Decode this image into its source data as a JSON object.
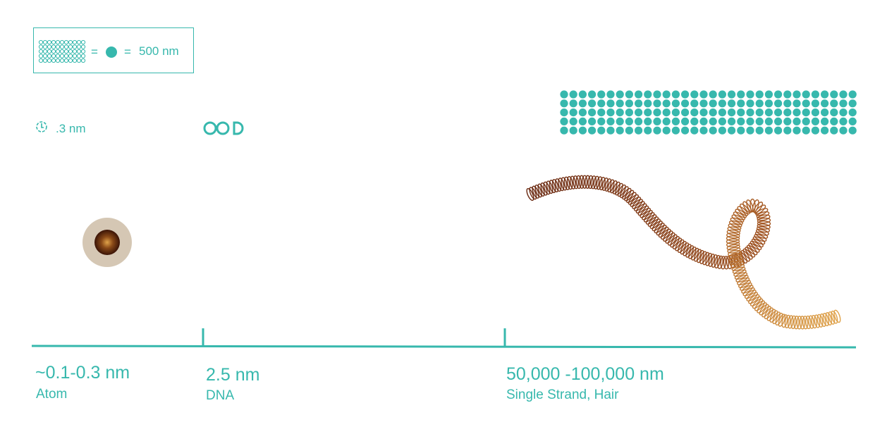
{
  "colors": {
    "accent": "#37b8ad",
    "atom_halo": "#d5c7b4",
    "atom_core": "#4a1e0a",
    "hair_dark": "#6b2a12",
    "hair_light": "#e0a34a"
  },
  "legend": {
    "equals_1": "=",
    "equals_2": "=",
    "value": "500 nm",
    "grid_icon": "dot-grid-icon",
    "dot_icon": "filled-dot-icon"
  },
  "atom_zoom": {
    "label": ".3 nm",
    "icon": "atom-outline-icon"
  },
  "dna_zoom": {
    "icon": "dna-rings-icon"
  },
  "items": [
    {
      "measure": "~0.1-0.3 nm",
      "caption": "Atom"
    },
    {
      "measure": "2.5 nm",
      "caption": "DNA"
    },
    {
      "measure": "50,000 -100,000 nm",
      "caption": "Single Strand, Hair"
    }
  ],
  "dot_block": {
    "rows": 5,
    "cols": 32
  }
}
